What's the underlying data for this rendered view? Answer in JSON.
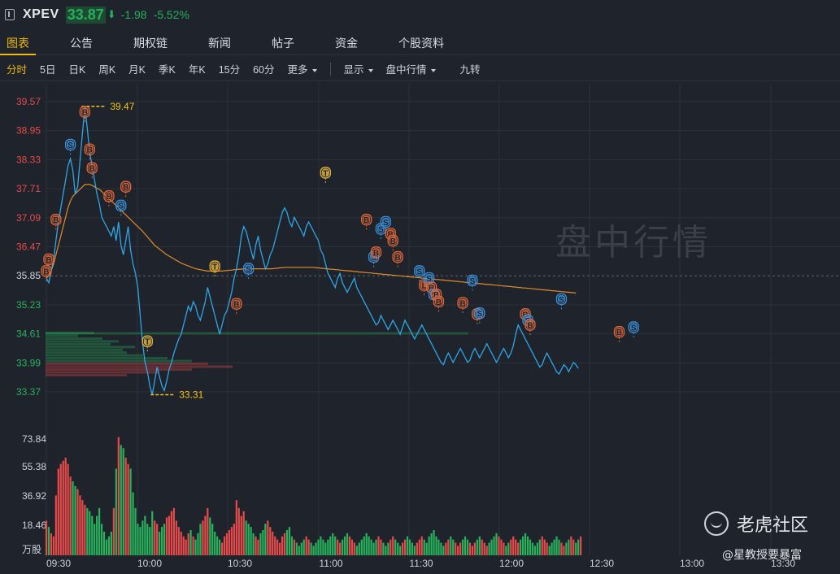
{
  "header": {
    "symbol": "XPEV",
    "price": "33.87",
    "change": "-1.98",
    "change_pct": "-5.52%",
    "price_color": "#25b05e"
  },
  "tabs": [
    "图表",
    "公告",
    "期权链",
    "新闻",
    "帖子",
    "资金",
    "个股资料"
  ],
  "active_tab": "图表",
  "toolbar": {
    "periods": [
      "分时",
      "5日",
      "日K",
      "周K",
      "月K",
      "季K",
      "年K",
      "15分",
      "60分"
    ],
    "active_period": "分时",
    "more": "更多",
    "display": "显示",
    "intraday": "盘中行情",
    "jiuzhuan": "九转"
  },
  "watermark": "盘中行情",
  "branding": {
    "logo_icon": "tiger-logo-icon",
    "name": "老虎社区",
    "author": "@星教授要暴富"
  },
  "chart_data": {
    "type": "line",
    "title": "",
    "price_ticks": [
      "39.57",
      "38.95",
      "38.33",
      "37.71",
      "37.09",
      "36.47",
      "35.85",
      "35.23",
      "34.61",
      "33.99",
      "33.37"
    ],
    "prev_close": 35.85,
    "high_label": "39.47",
    "low_label": "33.31",
    "time_ticks": [
      "09:30",
      "10:00",
      "10:30",
      "11:00",
      "11:30",
      "12:00",
      "12:30",
      "13:00",
      "13:30"
    ],
    "volume_ticks": [
      "73.84",
      "55.38",
      "36.92",
      "18.46",
      "万股"
    ],
    "colors": {
      "price_line": "#2ea6e8",
      "avg_line": "#e08b2a",
      "up": "#e84a4a",
      "down": "#27b35c",
      "buy": "#e0683a",
      "sell": "#3a8fd8",
      "trade": "#e2b23a"
    },
    "series": [
      {
        "values": [
          35.8,
          35.7,
          35.95,
          36.2,
          36.6,
          37.0,
          37.3,
          37.6,
          37.9,
          38.2,
          38.35,
          38.1,
          37.6,
          37.75,
          38.3,
          38.9,
          39.47,
          39.0,
          38.5,
          38.2,
          37.9,
          37.6,
          37.4,
          37.1,
          37.0,
          36.9,
          36.8,
          36.7,
          36.9,
          36.6,
          37.0,
          36.5,
          36.3,
          36.6,
          36.9,
          36.4,
          36.1,
          35.9,
          35.6,
          35.0,
          34.4,
          34.0,
          33.8,
          33.5,
          33.31,
          33.6,
          33.9,
          33.7,
          33.5,
          33.4,
          33.6,
          33.85,
          34.0,
          34.2,
          34.35,
          34.5,
          34.6,
          34.8,
          35.0,
          35.2,
          35.1,
          35.3,
          35.2,
          35.0,
          34.9,
          35.1,
          35.3,
          35.6,
          35.4,
          35.2,
          35.0,
          34.8,
          34.6,
          34.8,
          35.0,
          35.1,
          35.3,
          35.5,
          35.8,
          36.0,
          36.3,
          36.7,
          36.9,
          36.8,
          36.6,
          36.4,
          36.2,
          36.5,
          36.7,
          36.4,
          36.2,
          36.0,
          36.1,
          36.3,
          36.4,
          36.6,
          36.8,
          37.0,
          37.2,
          37.3,
          37.2,
          37.0,
          36.9,
          37.1,
          37.0,
          36.9,
          36.8,
          36.7,
          36.9,
          37.0,
          36.9,
          36.8,
          36.7,
          36.6,
          36.4,
          36.3,
          36.1,
          35.9,
          35.8,
          35.7,
          35.6,
          35.8,
          35.9,
          35.7,
          35.6,
          35.5,
          35.6,
          35.7,
          35.8,
          35.6,
          35.5,
          35.4,
          35.3,
          35.2,
          35.1,
          35.0,
          34.9,
          34.8,
          34.85,
          35.0,
          34.9,
          34.8,
          34.7,
          34.8,
          34.9,
          34.8,
          34.7,
          34.6,
          34.75,
          34.9,
          34.8,
          34.7,
          34.6,
          34.5,
          34.6,
          34.7,
          34.8,
          34.7,
          34.6,
          34.5,
          34.4,
          34.3,
          34.2,
          34.1,
          34.0,
          33.95,
          34.1,
          34.2,
          34.1,
          34.0,
          34.1,
          34.2,
          34.3,
          34.2,
          34.1,
          34.0,
          34.05,
          34.2,
          34.3,
          34.2,
          34.1,
          34.2,
          34.3,
          34.4,
          34.3,
          34.2,
          34.1,
          34.0,
          34.1,
          34.2,
          34.3,
          34.2,
          34.1,
          34.2,
          34.35,
          34.6,
          34.8,
          34.7,
          34.6,
          34.5,
          34.4,
          34.3,
          34.2,
          34.1,
          34.0,
          33.9,
          33.95,
          34.1,
          34.2,
          34.1,
          34.0,
          33.9,
          33.8,
          33.75,
          33.85,
          33.95,
          33.9,
          33.8,
          33.9,
          34.0,
          33.95,
          33.87
        ],
        "color": "#2ea6e8"
      },
      {
        "values": [
          35.8,
          35.85,
          35.95,
          36.1,
          36.3,
          36.5,
          36.7,
          36.9,
          37.1,
          37.3,
          37.45,
          37.55,
          37.6,
          37.65,
          37.7,
          37.75,
          37.8,
          37.8,
          37.8,
          37.78,
          37.75,
          37.72,
          37.7,
          37.65,
          37.6,
          37.55,
          37.5,
          37.45,
          37.4,
          37.35,
          37.3,
          37.25,
          37.2,
          37.15,
          37.1,
          37.05,
          37.0,
          36.95,
          36.9,
          36.85,
          36.8,
          36.74,
          36.68,
          36.62,
          36.56,
          36.5,
          36.46,
          36.42,
          36.38,
          36.34,
          36.3,
          36.27,
          36.24,
          36.21,
          36.18,
          36.15,
          36.12,
          36.1,
          36.08,
          36.06,
          36.04,
          36.02,
          36.0,
          35.99,
          35.98,
          35.97,
          35.96,
          35.95,
          35.95,
          35.95,
          35.95,
          35.95,
          35.95,
          35.95,
          35.96,
          35.96,
          35.97,
          35.97,
          35.98,
          35.98,
          35.99,
          35.99,
          36.0,
          36.0,
          36.0,
          36.0,
          36.0,
          36.0,
          36.0,
          36.0,
          36.0,
          36.0,
          36.0,
          36.0,
          36.0,
          36.01,
          36.01,
          36.02,
          36.02,
          36.03,
          36.03,
          36.03,
          36.03,
          36.03,
          36.03,
          36.03,
          36.03,
          36.03,
          36.03,
          36.03,
          36.03,
          36.03,
          36.02,
          36.02,
          36.01,
          36.01,
          36.0,
          36.0,
          35.99,
          35.99,
          35.98,
          35.98,
          35.97,
          35.97,
          35.96,
          35.96,
          35.95,
          35.95,
          35.94,
          35.94,
          35.93,
          35.93,
          35.92,
          35.92,
          35.91,
          35.91,
          35.9,
          35.9,
          35.89,
          35.89,
          35.88,
          35.88,
          35.87,
          35.87,
          35.86,
          35.86,
          35.85,
          35.85,
          35.84,
          35.84,
          35.83,
          35.83,
          35.82,
          35.82,
          35.81,
          35.81,
          35.8,
          35.8,
          35.79,
          35.79,
          35.78,
          35.78,
          35.77,
          35.77,
          35.76,
          35.76,
          35.75,
          35.75,
          35.74,
          35.74,
          35.73,
          35.73,
          35.72,
          35.72,
          35.71,
          35.71,
          35.7,
          35.7,
          35.69,
          35.69,
          35.68,
          35.68,
          35.67,
          35.67,
          35.66,
          35.66,
          35.65,
          35.65,
          35.64,
          35.64,
          35.63,
          35.63,
          35.62,
          35.62,
          35.61,
          35.61,
          35.6,
          35.6,
          35.59,
          35.59,
          35.58,
          35.58,
          35.57,
          35.57,
          35.56,
          35.56,
          35.55,
          35.55,
          35.54,
          35.54,
          35.53,
          35.53,
          35.52,
          35.52,
          35.51,
          35.51,
          35.5,
          35.5,
          35.49,
          35.49,
          35.48
        ],
        "color": "#e08b2a"
      }
    ],
    "volume": [
      22,
      18,
      14,
      12,
      38,
      55,
      58,
      60,
      62,
      58,
      50,
      47,
      44,
      42,
      38,
      35,
      32,
      30,
      28,
      25,
      20,
      25,
      30,
      20,
      15,
      10,
      12,
      15,
      30,
      55,
      75,
      70,
      68,
      62,
      58,
      55,
      40,
      30,
      20,
      18,
      22,
      25,
      20,
      18,
      28,
      22,
      20,
      15,
      18,
      20,
      24,
      25,
      28,
      30,
      22,
      18,
      15,
      12,
      10,
      14,
      16,
      12,
      10,
      14,
      20,
      22,
      25,
      30,
      24,
      20,
      15,
      12,
      10,
      8,
      12,
      14,
      16,
      18,
      20,
      35,
      30,
      25,
      28,
      22,
      20,
      18,
      14,
      12,
      10,
      14,
      16,
      20,
      22,
      18,
      15,
      12,
      10,
      8,
      12,
      14,
      16,
      18,
      12,
      10,
      8,
      6,
      8,
      10,
      12,
      10,
      8,
      6,
      8,
      10,
      12,
      10,
      8,
      10,
      12,
      14,
      12,
      10,
      8,
      10,
      12,
      14,
      12,
      10,
      8,
      6,
      8,
      10,
      12,
      14,
      12,
      10,
      8,
      10,
      12,
      10,
      8,
      6,
      8,
      10,
      12,
      10,
      8,
      6,
      8,
      10,
      12,
      10,
      8,
      6,
      8,
      10,
      12,
      10,
      8,
      12,
      14,
      16,
      12,
      10,
      8,
      6,
      8,
      10,
      12,
      10,
      8,
      6,
      8,
      10,
      12,
      10,
      8,
      6,
      8,
      10,
      12,
      10,
      8,
      6,
      8,
      10,
      12,
      14,
      12,
      10,
      8,
      6,
      8,
      10,
      12,
      10,
      8,
      10,
      12,
      14,
      12,
      10,
      8,
      6,
      8,
      10,
      12,
      10,
      8,
      6,
      8,
      10,
      12,
      10,
      8,
      6,
      8,
      10,
      12,
      10,
      8,
      10,
      12
    ],
    "markers": [
      {
        "label": "B",
        "time": 0,
        "price": 35.7,
        "kind": "buy"
      },
      {
        "label": "B",
        "time": 1,
        "price": 35.95,
        "kind": "buy"
      },
      {
        "label": "B",
        "time": 4,
        "price": 36.8,
        "kind": "buy"
      },
      {
        "label": "S",
        "time": 10,
        "price": 38.4,
        "kind": "sell"
      },
      {
        "label": "B",
        "time": 16,
        "price": 39.1,
        "kind": "buy"
      },
      {
        "label": "B",
        "time": 18,
        "price": 38.3,
        "kind": "buy"
      },
      {
        "label": "B",
        "time": 19,
        "price": 37.9,
        "kind": "buy"
      },
      {
        "label": "B",
        "time": 26,
        "price": 37.3,
        "kind": "buy"
      },
      {
        "label": "B",
        "time": 33,
        "price": 37.5,
        "kind": "buy"
      },
      {
        "label": "S",
        "time": 31,
        "price": 37.1,
        "kind": "sell"
      },
      {
        "label": "T",
        "time": 42,
        "price": 34.2,
        "kind": "trade"
      },
      {
        "label": "T",
        "time": 70,
        "price": 35.8,
        "kind": "trade"
      },
      {
        "label": "B",
        "time": 79,
        "price": 35.0,
        "kind": "buy"
      },
      {
        "label": "S",
        "time": 84,
        "price": 35.75,
        "kind": "sell"
      },
      {
        "label": "T",
        "time": 116,
        "price": 37.8,
        "kind": "trade"
      },
      {
        "label": "B",
        "time": 133,
        "price": 36.8,
        "kind": "buy"
      },
      {
        "label": "S",
        "time": 136,
        "price": 36.0,
        "kind": "sell"
      },
      {
        "label": "B",
        "time": 137,
        "price": 36.1,
        "kind": "buy"
      },
      {
        "label": "S",
        "time": 139,
        "price": 36.6,
        "kind": "sell"
      },
      {
        "label": "S",
        "time": 141,
        "price": 36.75,
        "kind": "sell"
      },
      {
        "label": "B",
        "time": 143,
        "price": 36.5,
        "kind": "buy"
      },
      {
        "label": "B",
        "time": 144,
        "price": 36.35,
        "kind": "buy"
      },
      {
        "label": "B",
        "time": 146,
        "price": 36.0,
        "kind": "buy"
      },
      {
        "label": "S",
        "time": 155,
        "price": 35.7,
        "kind": "sell"
      },
      {
        "label": "L",
        "time": 157,
        "price": 35.4,
        "kind": "buy"
      },
      {
        "label": "S",
        "time": 159,
        "price": 35.55,
        "kind": "sell"
      },
      {
        "label": "B",
        "time": 160,
        "price": 35.35,
        "kind": "buy"
      },
      {
        "label": "S",
        "time": 161,
        "price": 35.2,
        "kind": "sell"
      },
      {
        "label": "B",
        "time": 162,
        "price": 35.2,
        "kind": "buy"
      },
      {
        "label": "B",
        "time": 163,
        "price": 35.05,
        "kind": "buy"
      },
      {
        "label": "B",
        "time": 173,
        "price": 35.02,
        "kind": "buy"
      },
      {
        "label": "S",
        "time": 177,
        "price": 35.5,
        "kind": "sell"
      },
      {
        "label": "B",
        "time": 179,
        "price": 34.78,
        "kind": "buy"
      },
      {
        "label": "S",
        "time": 180,
        "price": 34.8,
        "kind": "sell"
      },
      {
        "label": "B",
        "time": 199,
        "price": 34.78,
        "kind": "buy"
      },
      {
        "label": "S",
        "time": 200,
        "price": 34.65,
        "kind": "sell"
      },
      {
        "label": "B",
        "time": 201,
        "price": 34.55,
        "kind": "buy"
      },
      {
        "label": "S",
        "time": 214,
        "price": 35.1,
        "kind": "sell"
      },
      {
        "label": "B",
        "time": 238,
        "price": 34.4,
        "kind": "buy"
      },
      {
        "label": "S",
        "time": 244,
        "price": 34.5,
        "kind": "sell"
      }
    ]
  }
}
